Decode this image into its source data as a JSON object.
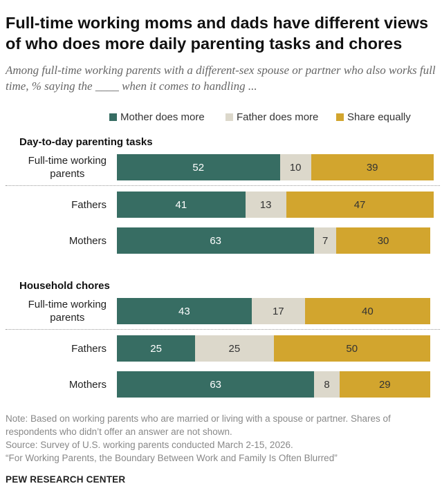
{
  "title": "Full-time working moms and dads have different views of who does more daily parenting tasks and chores",
  "subtitle": "Among full-time working parents with a different-sex spouse or partner who also works full time, % saying the ____ when it comes to handling ...",
  "colors": {
    "mother": "#376d63",
    "father": "#dcd8cb",
    "equal": "#d2a52e",
    "mother_text": "#ffffff",
    "father_text": "#333333",
    "equal_text": "#333333"
  },
  "chart_data": {
    "type": "bar",
    "orientation": "horizontal",
    "stacked": true,
    "xlim": [
      0,
      100
    ],
    "legend": {
      "placement": "top",
      "entries": [
        "Mother does more",
        "Father does more",
        "Share equally"
      ]
    },
    "groups": [
      {
        "label": "Day-to-day parenting tasks",
        "categories": [
          "Full-time working parents",
          "Fathers",
          "Mothers"
        ],
        "series": [
          {
            "name": "Mother does more",
            "values": [
              52,
              41,
              63
            ]
          },
          {
            "name": "Father does more",
            "values": [
              10,
              13,
              7
            ]
          },
          {
            "name": "Share equally",
            "values": [
              39,
              47,
              30
            ]
          }
        ]
      },
      {
        "label": "Household chores",
        "categories": [
          "Full-time working parents",
          "Fathers",
          "Mothers"
        ],
        "series": [
          {
            "name": "Mother does more",
            "values": [
              43,
              25,
              63
            ]
          },
          {
            "name": "Father does more",
            "values": [
              17,
              25,
              8
            ]
          },
          {
            "name": "Share equally",
            "values": [
              40,
              50,
              29
            ]
          }
        ]
      }
    ]
  },
  "footer": {
    "note": "Note: Based on working parents who are married or living with a spouse or partner. Shares of respondents who didn’t offer an answer are not shown.",
    "source": "Source: Survey of U.S. working parents conducted March 2-15, 2026.",
    "report": "“For Working Parents, the Boundary Between Work and Family Is Often Blurred”",
    "brand": "PEW RESEARCH CENTER"
  }
}
